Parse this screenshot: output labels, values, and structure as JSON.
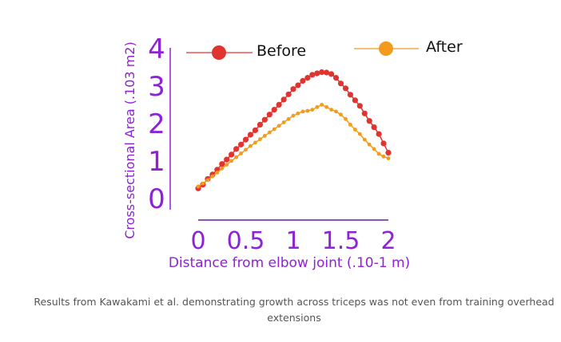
{
  "chart_data": {
    "type": "line",
    "title": "",
    "xlabel": "Distance from elbow joint (.10-1 m)",
    "ylabel": "Cross-sectional Area (.103 m2)",
    "xticks": [
      "0",
      "0.5",
      "1",
      "1.5",
      "2"
    ],
    "yticks": [
      "0",
      "1",
      "2",
      "3",
      "4"
    ],
    "xlim": [
      0,
      2
    ],
    "ylim": [
      0,
      4
    ],
    "legend_position": "top",
    "series": [
      {
        "name": "Before",
        "color": "#e03431",
        "x": [
          0,
          0.05,
          0.1,
          0.15,
          0.2,
          0.25,
          0.3,
          0.35,
          0.4,
          0.45,
          0.5,
          0.55,
          0.6,
          0.65,
          0.7,
          0.75,
          0.8,
          0.85,
          0.9,
          0.95,
          1.0,
          1.05,
          1.1,
          1.15,
          1.2,
          1.25,
          1.3,
          1.35,
          1.4,
          1.45,
          1.5,
          1.55,
          1.6,
          1.65,
          1.7,
          1.75,
          1.8,
          1.85,
          1.9,
          1.95,
          2.0
        ],
        "values": [
          0.25,
          0.35,
          0.5,
          0.62,
          0.75,
          0.9,
          1.02,
          1.15,
          1.3,
          1.42,
          1.55,
          1.68,
          1.8,
          1.95,
          2.08,
          2.22,
          2.35,
          2.48,
          2.62,
          2.76,
          2.9,
          3.0,
          3.12,
          3.2,
          3.28,
          3.32,
          3.35,
          3.34,
          3.3,
          3.2,
          3.05,
          2.92,
          2.75,
          2.6,
          2.45,
          2.25,
          2.05,
          1.88,
          1.7,
          1.45,
          1.2
        ]
      },
      {
        "name": "After",
        "color": "#f29b1c",
        "x": [
          0,
          0.05,
          0.1,
          0.15,
          0.2,
          0.25,
          0.3,
          0.35,
          0.4,
          0.45,
          0.5,
          0.55,
          0.6,
          0.65,
          0.7,
          0.75,
          0.8,
          0.85,
          0.9,
          0.95,
          1.0,
          1.05,
          1.1,
          1.15,
          1.2,
          1.25,
          1.3,
          1.35,
          1.4,
          1.45,
          1.5,
          1.55,
          1.6,
          1.65,
          1.7,
          1.75,
          1.8,
          1.85,
          1.9,
          1.95,
          2.0
        ],
        "values": [
          0.3,
          0.38,
          0.47,
          0.57,
          0.67,
          0.78,
          0.88,
          0.98,
          1.08,
          1.18,
          1.28,
          1.38,
          1.47,
          1.56,
          1.65,
          1.74,
          1.83,
          1.92,
          2.01,
          2.1,
          2.19,
          2.25,
          2.3,
          2.32,
          2.35,
          2.42,
          2.48,
          2.42,
          2.35,
          2.3,
          2.22,
          2.1,
          1.95,
          1.82,
          1.7,
          1.55,
          1.42,
          1.3,
          1.17,
          1.1,
          1.05
        ]
      }
    ]
  },
  "caption": {
    "line1": "Results from Kawakami et al. demonstrating growth across triceps was not even from training overhead",
    "line2": "extensions"
  }
}
